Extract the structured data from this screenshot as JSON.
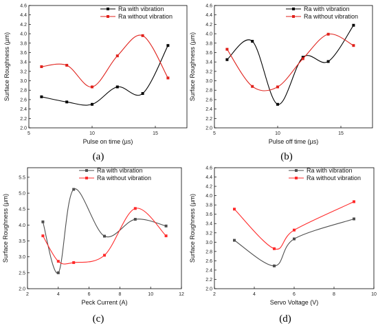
{
  "chart_data": [
    {
      "type": "line",
      "panel_label": "(a)",
      "xlabel": "Pulse on time (µs)",
      "ylabel": "Surface Roughness (µm)",
      "xlim": [
        5,
        17.5
      ],
      "ylim": [
        2.0,
        4.6
      ],
      "xticks": [
        5,
        10,
        15
      ],
      "yticks": [
        2.0,
        2.2,
        2.4,
        2.6,
        2.8,
        3.0,
        3.2,
        3.4,
        3.6,
        3.8,
        4.0,
        4.2,
        4.4,
        4.6
      ],
      "legend_position": "top-right",
      "x": [
        6,
        8,
        10,
        12,
        14,
        16
      ],
      "series": [
        {
          "name": "Ra with vibration",
          "color": "#000000",
          "values": [
            2.66,
            2.55,
            2.5,
            2.87,
            2.73,
            3.75
          ]
        },
        {
          "name": "Ra without vibration",
          "color": "#e0211b",
          "values": [
            3.3,
            3.33,
            2.87,
            3.53,
            3.96,
            3.06
          ]
        }
      ]
    },
    {
      "type": "line",
      "panel_label": "(b)",
      "xlabel": "Pulse off time (µs)",
      "ylabel": "Surface Roughness (µm)",
      "xlim": [
        5,
        17.5
      ],
      "ylim": [
        2.0,
        4.6
      ],
      "xticks": [
        5,
        10,
        15
      ],
      "yticks": [
        2.0,
        2.2,
        2.4,
        2.6,
        2.8,
        3.0,
        3.2,
        3.4,
        3.6,
        3.8,
        4.0,
        4.2,
        4.4,
        4.6
      ],
      "legend_position": "top-right",
      "x": [
        6,
        8,
        10,
        12,
        14,
        16
      ],
      "series": [
        {
          "name": "Ra with vibration",
          "color": "#000000",
          "values": [
            3.45,
            3.84,
            2.5,
            3.5,
            3.41,
            4.18
          ]
        },
        {
          "name": "Ra without vibration",
          "color": "#e0211b",
          "values": [
            3.67,
            2.88,
            2.87,
            3.47,
            3.99,
            3.75
          ]
        }
      ]
    },
    {
      "type": "line",
      "panel_label": "(c)",
      "xlabel": "Peck Current (A)",
      "ylabel": "Surface Roughness (µm)",
      "xlim": [
        2,
        12
      ],
      "ylim": [
        2.0,
        5.8
      ],
      "xticks": [
        2,
        4,
        6,
        8,
        10,
        12
      ],
      "yticks": [
        2.0,
        2.5,
        3.0,
        3.5,
        4.0,
        4.5,
        5.0,
        5.5
      ],
      "legend_position": "top-right",
      "x": [
        3,
        4,
        5,
        7,
        9,
        11
      ],
      "series": [
        {
          "name": "Ra with vibration",
          "color": "#4d4d4d",
          "values": [
            4.1,
            2.5,
            5.12,
            3.65,
            4.18,
            3.97
          ]
        },
        {
          "name": "Ra without vibration",
          "color": "#ff2a2a",
          "values": [
            3.66,
            2.86,
            2.82,
            3.05,
            4.52,
            3.66
          ]
        }
      ]
    },
    {
      "type": "line",
      "panel_label": "(d)",
      "xlabel": "Servo Voltage (V)",
      "ylabel": "Surface Roughness (µm)",
      "xlim": [
        2,
        10
      ],
      "ylim": [
        2.0,
        4.6
      ],
      "xticks": [
        2,
        4,
        6,
        8,
        10
      ],
      "yticks": [
        2.0,
        2.2,
        2.4,
        2.6,
        2.8,
        3.0,
        3.2,
        3.4,
        3.6,
        3.8,
        4.0,
        4.2,
        4.4,
        4.6
      ],
      "legend_position": "top-left",
      "x": [
        3,
        5,
        6,
        9
      ],
      "series": [
        {
          "name": "Ra with vibration",
          "color": "#4d4d4d",
          "values": [
            3.04,
            2.49,
            3.07,
            3.5
          ]
        },
        {
          "name": "Ra without vibration",
          "color": "#ff2a2a",
          "values": [
            3.71,
            2.86,
            3.26,
            3.87
          ]
        }
      ]
    }
  ]
}
